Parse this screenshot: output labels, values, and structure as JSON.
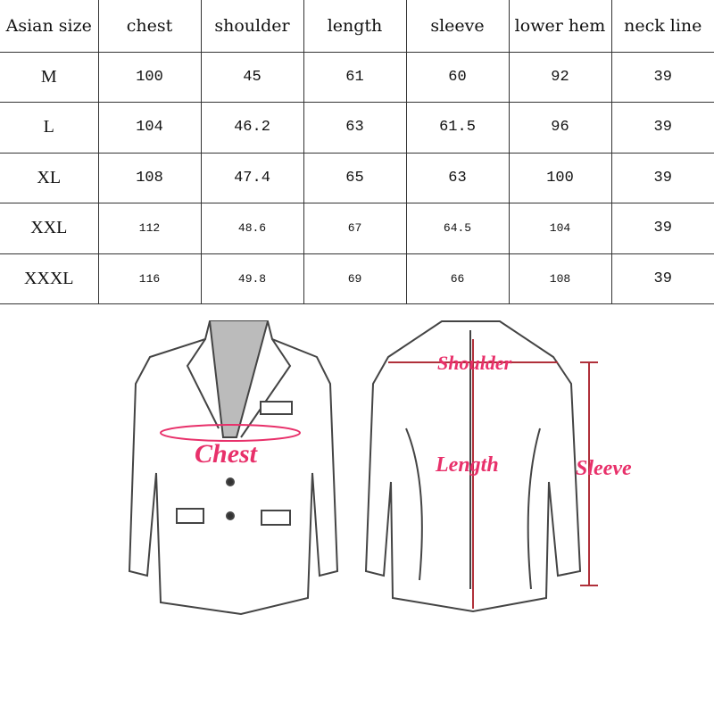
{
  "table": {
    "headers": [
      "Asian size",
      "chest",
      "shoulder",
      "length",
      "sleeve",
      "lower hem",
      "neck line"
    ],
    "rows": [
      [
        "M",
        "100",
        "45",
        "61",
        "60",
        "92",
        "39"
      ],
      [
        "L",
        "104",
        "46.2",
        "63",
        "61.5",
        "96",
        "39"
      ],
      [
        "XL",
        "108",
        "47.4",
        "65",
        "63",
        "100",
        "39"
      ],
      [
        "XXL",
        "112",
        "48.6",
        "67",
        "64.5",
        "104",
        "39"
      ],
      [
        "XXXL",
        "116",
        "49.8",
        "69",
        "66",
        "108",
        "39"
      ]
    ]
  },
  "diagram": {
    "chest": "Chest",
    "shoulder": "Shoulder",
    "length": "Length",
    "sleeve": "Sleeve",
    "accent_color": "#e8306a"
  }
}
